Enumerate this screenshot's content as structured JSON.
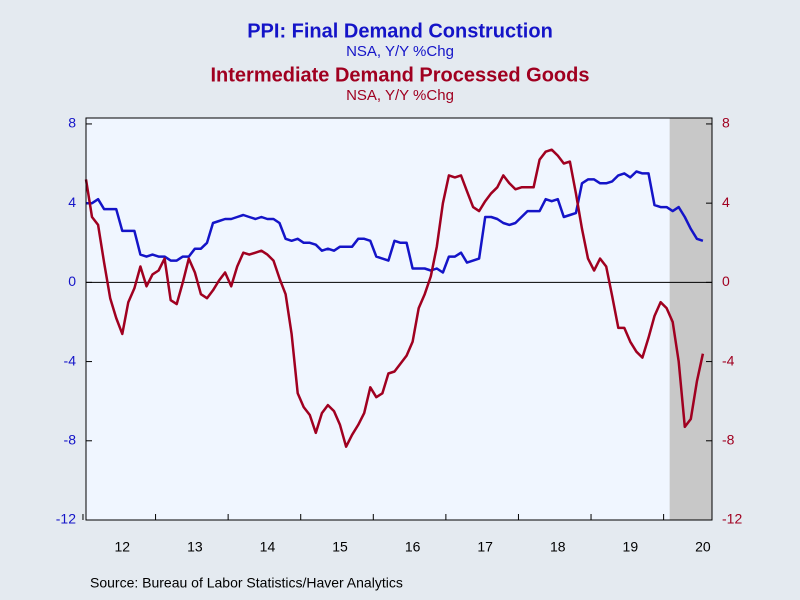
{
  "chart_data": {
    "type": "line",
    "titles": [
      {
        "text": "PPI: Final Demand Construction",
        "color": "#1414c8"
      },
      {
        "text": "NSA, Y/Y %Chg",
        "color": "#1414c8"
      },
      {
        "text": "Intermediate Demand Processed Goods",
        "color": "#a00020"
      },
      {
        "text": "NSA, Y/Y %Chg",
        "color": "#a00020"
      }
    ],
    "source": "Source:  Bureau of Labor Statistics/Haver Analytics",
    "categories": [
      null,
      null,
      null,
      null,
      null,
      null,
      "12",
      null,
      null,
      null,
      null,
      null,
      null,
      null,
      null,
      null,
      null,
      null,
      "13",
      null,
      null,
      null,
      null,
      null,
      null,
      null,
      null,
      null,
      null,
      null,
      "14",
      null,
      null,
      null,
      null,
      null,
      null,
      null,
      null,
      null,
      null,
      null,
      "15",
      null,
      null,
      null,
      null,
      null,
      null,
      null,
      null,
      null,
      null,
      null,
      "16",
      null,
      null,
      null,
      null,
      null,
      null,
      null,
      null,
      null,
      null,
      null,
      "17",
      null,
      null,
      null,
      null,
      null,
      null,
      null,
      null,
      null,
      null,
      null,
      "18",
      null,
      null,
      null,
      null,
      null,
      null,
      null,
      null,
      null,
      null,
      null,
      "19",
      null,
      null,
      null,
      null,
      null,
      null,
      null,
      null,
      null,
      null,
      null,
      "20"
    ],
    "shaded": {
      "from": 97,
      "to": 102
    },
    "ylim": [
      -12,
      8.3
    ],
    "yticks": [
      -12,
      -8,
      -4,
      0,
      4,
      8
    ],
    "y2lim": [
      -12,
      8.3
    ],
    "y2ticks": [
      -12,
      -8,
      -4,
      0,
      4,
      8
    ],
    "series": [
      {
        "name": "PPI: Final Demand Construction",
        "color": "#1414c8",
        "axis": "y",
        "values": [
          4.0,
          4.0,
          4.2,
          3.7,
          3.7,
          3.7,
          2.6,
          2.6,
          2.6,
          1.4,
          1.3,
          1.4,
          1.3,
          1.3,
          1.1,
          1.1,
          1.3,
          1.3,
          1.7,
          1.7,
          2.0,
          3.0,
          3.1,
          3.2,
          3.2,
          3.3,
          3.4,
          3.3,
          3.2,
          3.3,
          3.2,
          3.2,
          3.0,
          2.2,
          2.1,
          2.2,
          2.0,
          2.0,
          1.9,
          1.6,
          1.7,
          1.6,
          1.8,
          1.8,
          1.8,
          2.2,
          2.2,
          2.1,
          1.3,
          1.2,
          1.1,
          2.1,
          2.0,
          2.0,
          0.7,
          0.7,
          0.7,
          0.6,
          0.7,
          0.5,
          1.3,
          1.3,
          1.5,
          1.0,
          1.1,
          1.2,
          3.3,
          3.3,
          3.2,
          3.0,
          2.9,
          3.0,
          3.3,
          3.6,
          3.6,
          3.6,
          4.2,
          4.1,
          4.2,
          3.3,
          3.4,
          3.5,
          5.0,
          5.2,
          5.2,
          5.0,
          5.0,
          5.1,
          5.4,
          5.5,
          5.3,
          5.6,
          5.5,
          5.5,
          3.9,
          3.8,
          3.8,
          3.6,
          3.8,
          3.3,
          2.7,
          2.2,
          2.1
        ]
      },
      {
        "name": "Intermediate Demand Processed Goods",
        "color": "#a00020",
        "axis": "y2",
        "values": [
          5.2,
          3.3,
          2.9,
          1.0,
          -0.8,
          -1.8,
          -2.6,
          -1.0,
          -0.3,
          0.8,
          -0.2,
          0.4,
          0.6,
          1.2,
          -0.9,
          -1.1,
          0,
          1.2,
          0.5,
          -0.6,
          -0.8,
          -0.4,
          0.1,
          0.5,
          -0.2,
          0.8,
          1.5,
          1.4,
          1.5,
          1.6,
          1.4,
          1.1,
          0.2,
          -0.6,
          -2.6,
          -5.6,
          -6.3,
          -6.7,
          -7.6,
          -6.6,
          -6.2,
          -6.5,
          -7.2,
          -8.3,
          -7.7,
          -7.2,
          -6.6,
          -5.3,
          -5.8,
          -5.6,
          -4.6,
          -4.5,
          -4.1,
          -3.7,
          -3.0,
          -1.3,
          -0.6,
          0.3,
          1.8,
          4.0,
          5.4,
          5.3,
          5.4,
          4.6,
          3.8,
          3.6,
          4.1,
          4.5,
          4.8,
          5.4,
          5.0,
          4.7,
          4.8,
          4.8,
          4.8,
          6.2,
          6.6,
          6.7,
          6.4,
          6.0,
          6.1,
          4.5,
          2.7,
          1.2,
          0.6,
          1.2,
          0.8,
          -0.7,
          -2.3,
          -2.3,
          -3.0,
          -3.5,
          -3.8,
          -2.8,
          -1.7,
          -1.0,
          -1.3,
          -2.0,
          -4.0,
          -7.3,
          -6.9,
          -5.0,
          -3.6
        ]
      }
    ]
  }
}
